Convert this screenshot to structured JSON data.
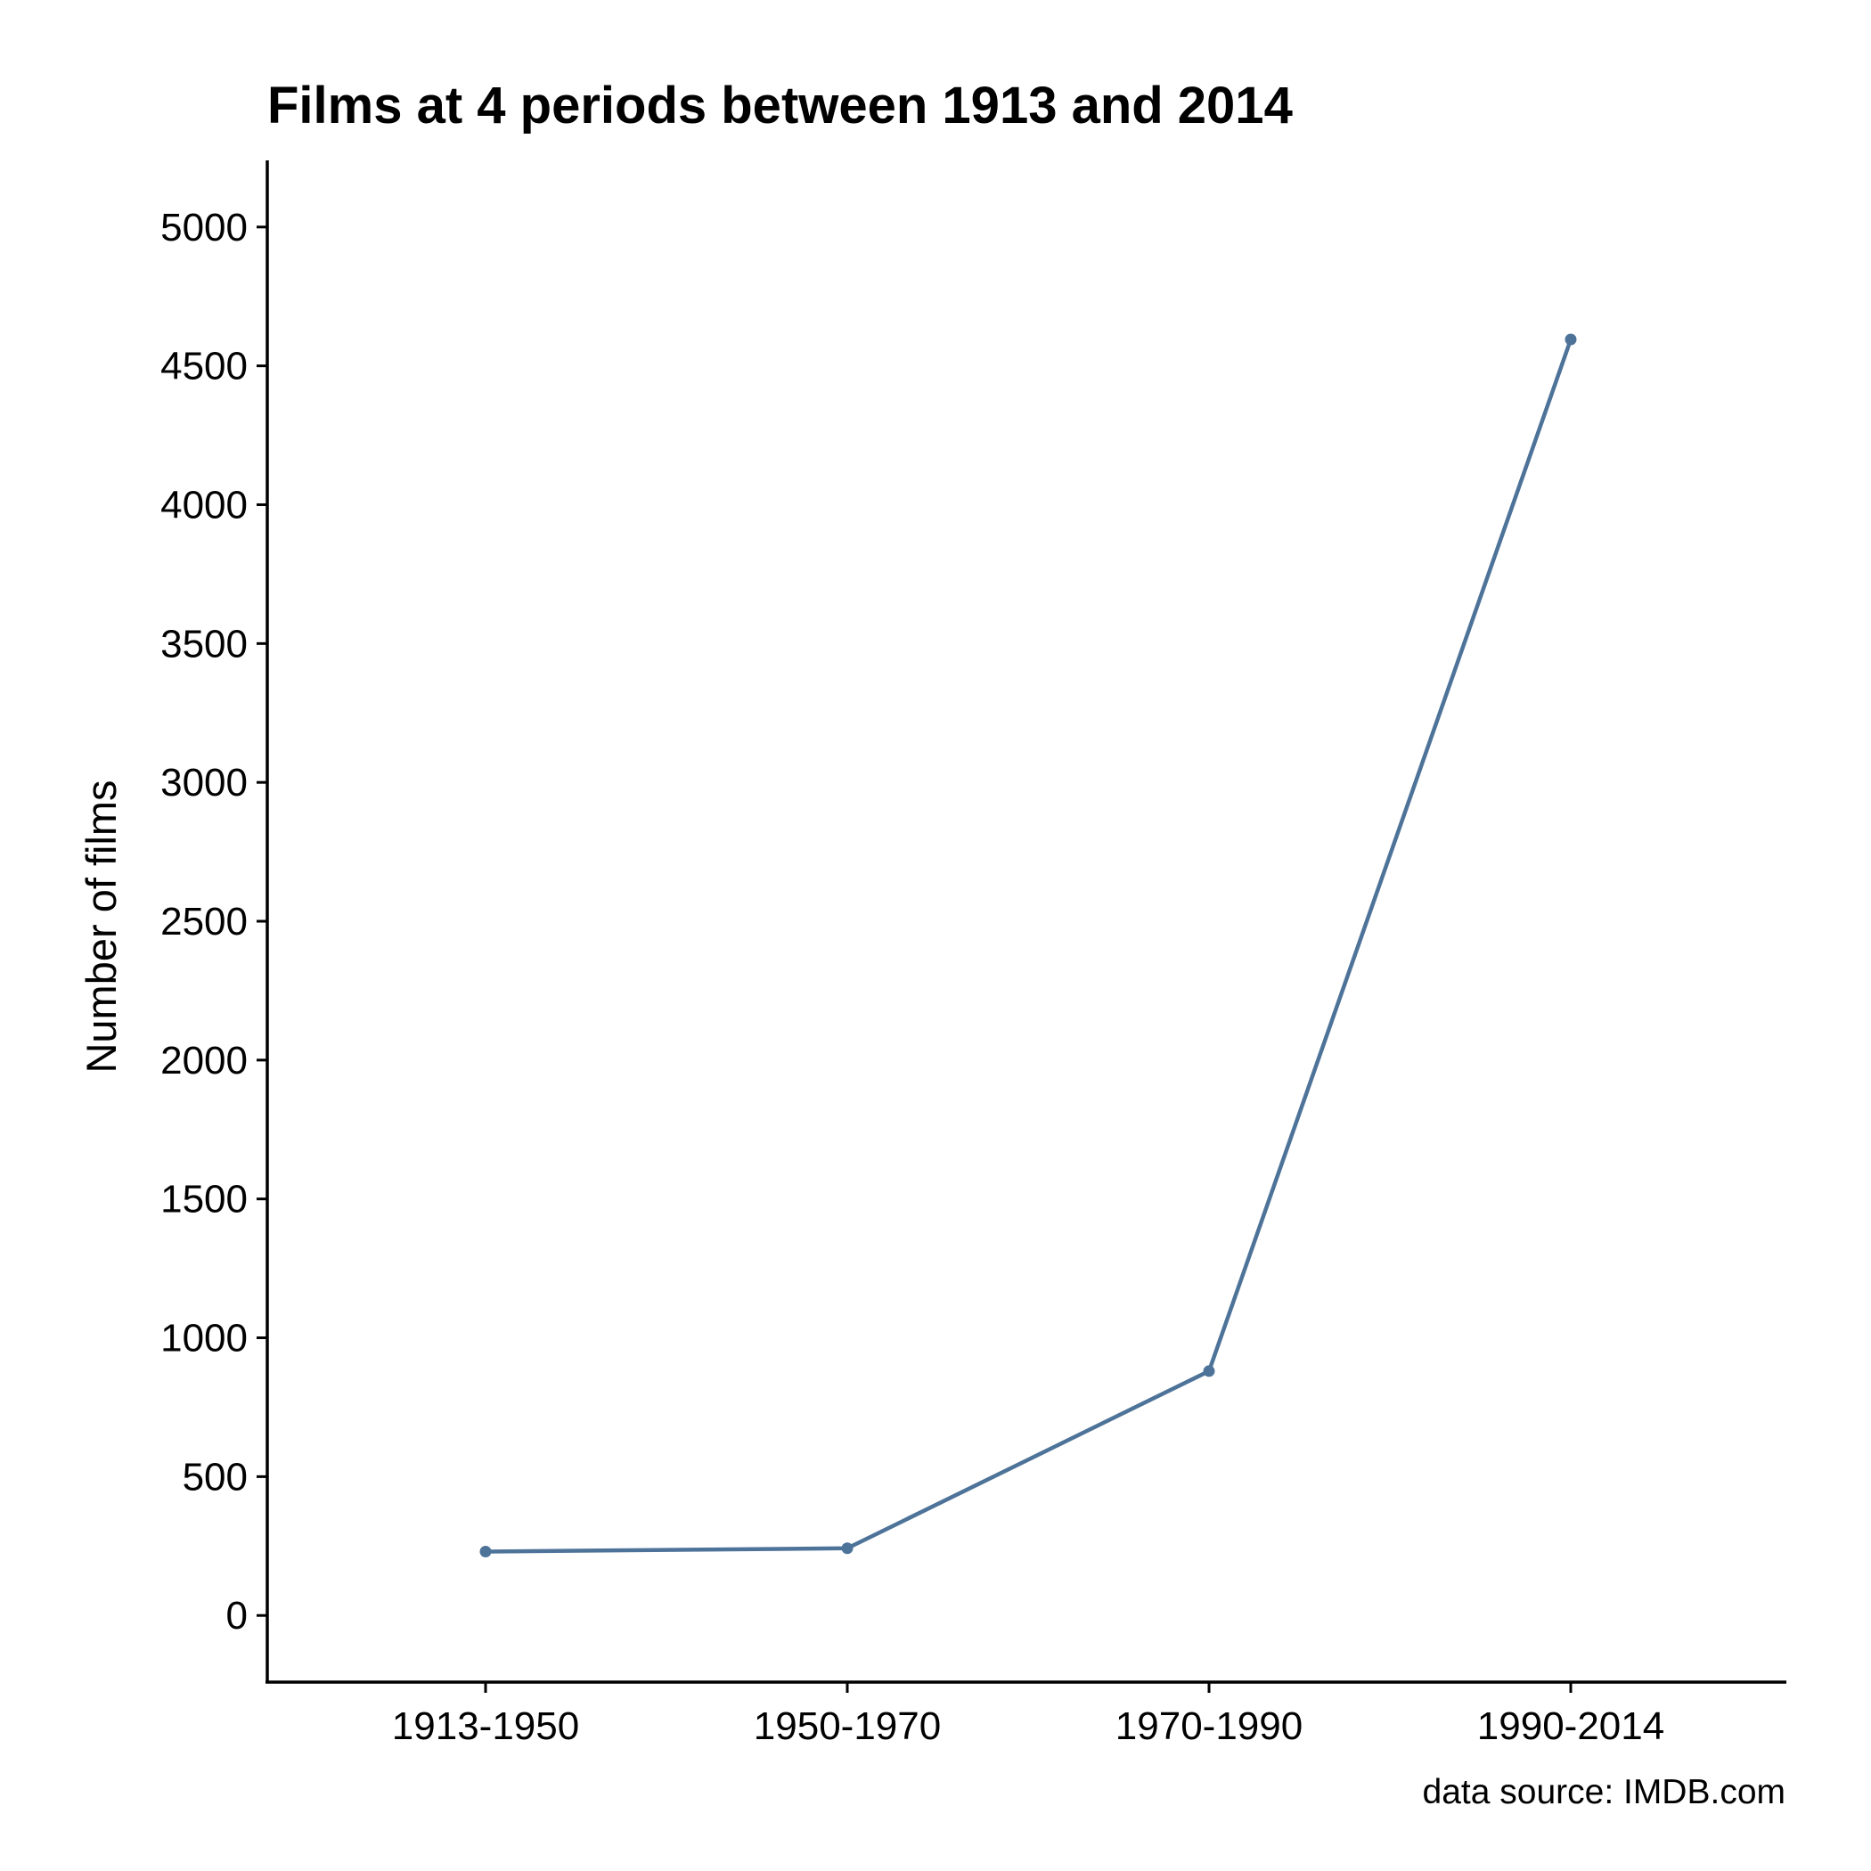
{
  "chart_data": {
    "type": "line",
    "title": "Films at 4 periods between 1913 and 2014",
    "xlabel": "",
    "ylabel": "Number of films",
    "caption": "data source: IMDB.com",
    "categories": [
      "1913-1950",
      "1950-1970",
      "1970-1990",
      "1990-2014"
    ],
    "values": [
      230,
      242,
      880,
      4595
    ],
    "ylim": [
      -240,
      5240
    ],
    "yticks": [
      0,
      500,
      1000,
      1500,
      2000,
      2500,
      3000,
      3500,
      4000,
      4500,
      5000
    ],
    "grid": false,
    "legend": "none",
    "color": "#4e7399"
  }
}
